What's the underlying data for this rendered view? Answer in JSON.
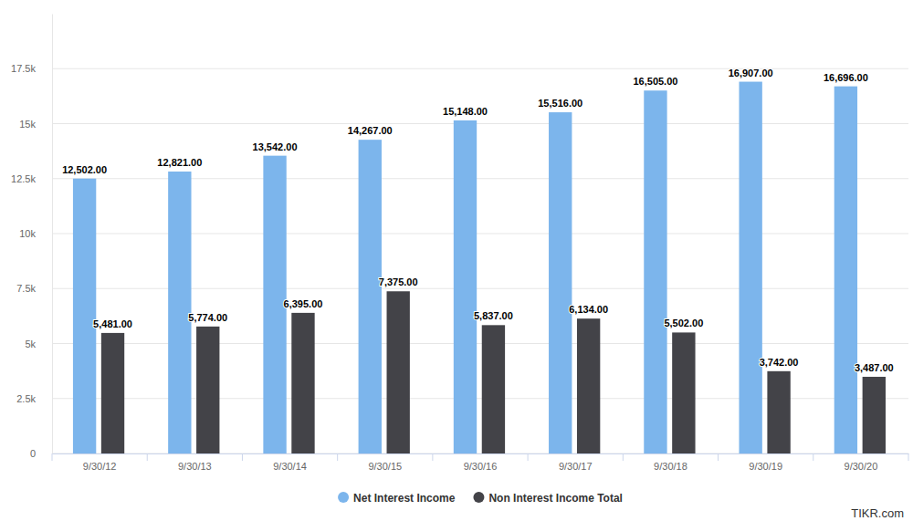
{
  "chart_data": {
    "type": "bar",
    "categories": [
      "9/30/12",
      "9/30/13",
      "9/30/14",
      "9/30/15",
      "9/30/16",
      "9/30/17",
      "9/30/18",
      "9/30/19",
      "9/30/20"
    ],
    "series": [
      {
        "name": "Net Interest Income",
        "color": "#7cb5ec",
        "values": [
          12502,
          12821,
          13542,
          14267,
          15148,
          15516,
          16505,
          16907,
          16696
        ],
        "value_labels": [
          "12,502.00",
          "12,821.00",
          "13,542.00",
          "14,267.00",
          "15,148.00",
          "15,516.00",
          "16,505.00",
          "16,907.00",
          "16,696.00"
        ]
      },
      {
        "name": "Non Interest Income Total",
        "color": "#434348",
        "values": [
          5481,
          5774,
          6395,
          7375,
          5837,
          6134,
          5502,
          3742,
          3487
        ],
        "value_labels": [
          "5,481.00",
          "5,774.00",
          "6,395.00",
          "7,375.00",
          "5,837.00",
          "6,134.00",
          "5,502.00",
          "3,742.00",
          "3,487.00"
        ]
      }
    ],
    "ylim": [
      0,
      20000
    ],
    "yticks": [
      0,
      {
        "value": 2500,
        "label": "2.5k"
      },
      {
        "value": 5000,
        "label": "5k"
      },
      {
        "value": 7500,
        "label": "7.5k"
      },
      {
        "value": 10000,
        "label": "10k"
      },
      {
        "value": 12500,
        "label": "12.5k"
      },
      {
        "value": 15000,
        "label": "15k"
      },
      {
        "value": 17500,
        "label": "17.5k"
      }
    ],
    "grid": true,
    "data_labels": true,
    "legend": "bottom",
    "annotations": [
      "TIKR.com"
    ]
  }
}
